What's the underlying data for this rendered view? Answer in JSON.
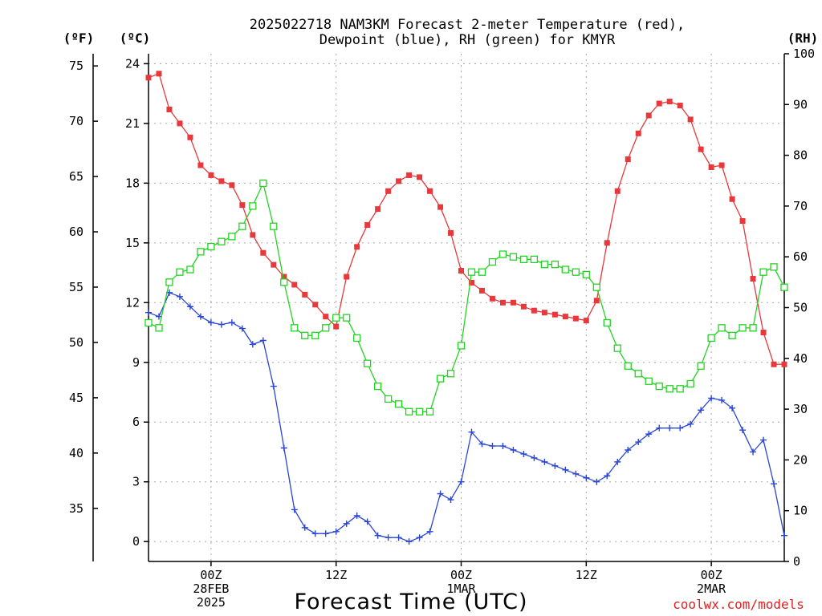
{
  "chart_data": {
    "type": "line",
    "title_line1": "2025022718 NAM3KM Forecast 2-meter Temperature (red),",
    "title_line2": "Dewpoint (blue), RH (green) for KMYR",
    "xlabel": "Forecast Time (UTC)",
    "credit": "coolwx.com/models",
    "units": {
      "fahrenheit": "(ºF)",
      "celsius": "(ºC)",
      "rh": "(RH)"
    },
    "x_range_hours": [
      0,
      61
    ],
    "x_ticks": [
      {
        "hour": 6,
        "lines": [
          "00Z",
          "28FEB",
          "2025"
        ]
      },
      {
        "hour": 18,
        "lines": [
          "12Z"
        ]
      },
      {
        "hour": 30,
        "lines": [
          "00Z",
          "1MAR"
        ]
      },
      {
        "hour": 42,
        "lines": [
          "12Z"
        ]
      },
      {
        "hour": 54,
        "lines": [
          "00Z",
          "2MAR"
        ]
      }
    ],
    "celsius_axis": {
      "range": [
        -1.0,
        24.5
      ],
      "ticks": [
        0,
        3,
        6,
        9,
        12,
        15,
        18,
        21,
        24
      ]
    },
    "fahrenheit_axis": {
      "ticks": [
        35,
        40,
        45,
        50,
        55,
        60,
        65,
        70,
        75
      ]
    },
    "rh_axis": {
      "range": [
        0,
        100
      ],
      "ticks": [
        0,
        10,
        20,
        30,
        40,
        50,
        60,
        70,
        80,
        90,
        100
      ]
    },
    "grid": true,
    "series": [
      {
        "name": "Temperature",
        "color": "#e8383c",
        "marker": "filled-square",
        "axis": "celsius",
        "x": [
          0,
          1,
          2,
          3,
          4,
          5,
          6,
          7,
          8,
          9,
          10,
          11,
          12,
          13,
          14,
          15,
          16,
          17,
          18,
          19,
          20,
          21,
          22,
          23,
          24,
          25,
          26,
          27,
          28,
          29,
          30,
          31,
          32,
          33,
          34,
          35,
          36,
          37,
          38,
          39,
          40,
          41,
          42,
          43,
          44,
          45,
          46,
          47,
          48,
          49,
          50,
          51,
          52,
          53,
          54,
          55,
          56,
          57,
          58,
          59,
          60,
          61
        ],
        "values": [
          23.3,
          23.5,
          21.7,
          21.0,
          20.3,
          18.9,
          18.4,
          18.1,
          17.9,
          16.9,
          15.4,
          14.5,
          13.9,
          13.3,
          12.9,
          12.4,
          11.9,
          11.3,
          10.8,
          13.3,
          14.8,
          15.9,
          16.7,
          17.6,
          18.1,
          18.4,
          18.3,
          17.6,
          16.8,
          15.5,
          13.6,
          13.0,
          12.6,
          12.2,
          12.0,
          12.0,
          11.8,
          11.6,
          11.5,
          11.4,
          11.3,
          11.2,
          11.1,
          12.1,
          15.0,
          17.6,
          19.2,
          20.5,
          21.4,
          22.0,
          22.1,
          21.9,
          21.2,
          19.7,
          18.8,
          18.9,
          17.2,
          16.1,
          13.2,
          10.5,
          8.9,
          8.9
        ]
      },
      {
        "name": "Dewpoint",
        "color": "#2a46d6",
        "marker": "plus",
        "axis": "celsius",
        "x": [
          0,
          1,
          2,
          3,
          4,
          5,
          6,
          7,
          8,
          9,
          10,
          11,
          12,
          13,
          14,
          15,
          16,
          17,
          18,
          19,
          20,
          21,
          22,
          23,
          24,
          25,
          26,
          27,
          28,
          29,
          30,
          31,
          32,
          33,
          34,
          35,
          36,
          37,
          38,
          39,
          40,
          41,
          42,
          43,
          44,
          45,
          46,
          47,
          48,
          49,
          50,
          51,
          52,
          53,
          54,
          55,
          56,
          57,
          58,
          59,
          60,
          61
        ],
        "values": [
          11.5,
          11.3,
          12.5,
          12.3,
          11.8,
          11.3,
          11.0,
          10.9,
          11.0,
          10.7,
          9.9,
          10.1,
          7.8,
          4.7,
          1.6,
          0.7,
          0.4,
          0.4,
          0.5,
          0.9,
          1.3,
          1.0,
          0.3,
          0.2,
          0.2,
          0.0,
          0.2,
          0.5,
          2.4,
          2.1,
          3.0,
          5.5,
          4.9,
          4.8,
          4.8,
          4.6,
          4.4,
          4.2,
          4.0,
          3.8,
          3.6,
          3.4,
          3.2,
          3.0,
          3.3,
          4.0,
          4.6,
          5.0,
          5.4,
          5.7,
          5.7,
          5.7,
          5.9,
          6.6,
          7.2,
          7.1,
          6.7,
          5.6,
          4.5,
          5.1,
          2.9,
          0.3
        ]
      },
      {
        "name": "RH",
        "color": "#22d422",
        "marker": "open-square",
        "axis": "rh",
        "x": [
          0,
          1,
          2,
          3,
          4,
          5,
          6,
          7,
          8,
          9,
          10,
          11,
          12,
          13,
          14,
          15,
          16,
          17,
          18,
          19,
          20,
          21,
          22,
          23,
          24,
          25,
          26,
          27,
          28,
          29,
          30,
          31,
          32,
          33,
          34,
          35,
          36,
          37,
          38,
          39,
          40,
          41,
          42,
          43,
          44,
          45,
          46,
          47,
          48,
          49,
          50,
          51,
          52,
          53,
          54,
          55,
          56,
          57,
          58,
          59,
          60,
          61
        ],
        "values": [
          47,
          46,
          55,
          57,
          57.5,
          61,
          62,
          63,
          64,
          66,
          70,
          74.5,
          66,
          55,
          46,
          44.5,
          44.5,
          46,
          48,
          48,
          44,
          39,
          34.5,
          32,
          31,
          29.5,
          29.5,
          29.5,
          36,
          37,
          42.5,
          57,
          57,
          59,
          60.5,
          60,
          59.5,
          59.5,
          58.5,
          58.5,
          57.5,
          57,
          56.5,
          54,
          47,
          42,
          38.5,
          37,
          35.5,
          34.5,
          34,
          34,
          35,
          38.5,
          44,
          46,
          44.5,
          46,
          46,
          57,
          58,
          54
        ]
      }
    ]
  }
}
